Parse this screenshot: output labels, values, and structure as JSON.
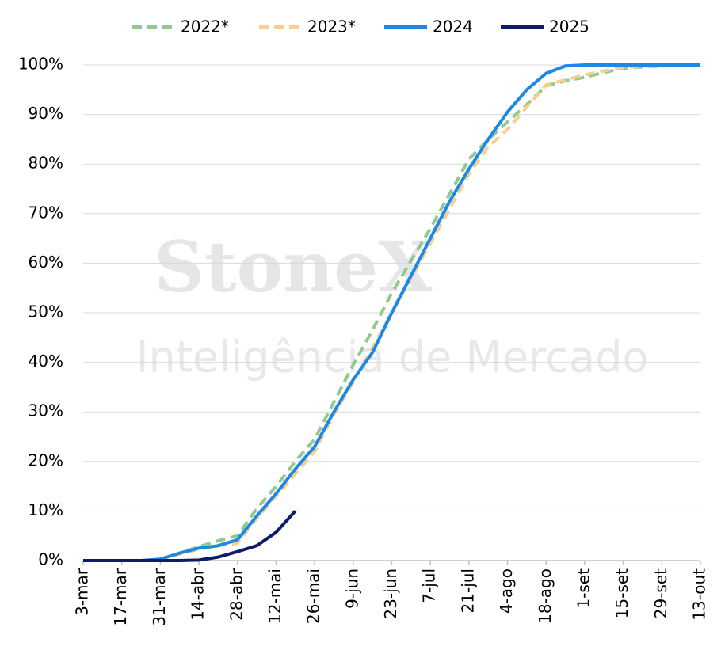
{
  "chart_data": {
    "type": "line",
    "watermark": {
      "brand": "StoneX",
      "subtitle": "Inteligência de Mercado"
    },
    "categories": [
      "3-mar",
      null,
      "17-mar",
      null,
      "31-mar",
      null,
      "14-abr",
      null,
      "28-abr",
      null,
      "12-mai",
      null,
      "26-mai",
      null,
      "9-jun",
      null,
      "23-jun",
      null,
      "7-jul",
      null,
      "21-jul",
      null,
      "4-ago",
      null,
      "18-ago",
      null,
      "1-set",
      null,
      "15-set",
      null,
      "29-set",
      null,
      "13-out"
    ],
    "series": [
      {
        "name": "2022*",
        "color": "#93c98f",
        "dash": true,
        "values": [
          0,
          0,
          0,
          0,
          0.3,
          1.5,
          2.8,
          4,
          5,
          10.5,
          15,
          20,
          24.5,
          32,
          39.5,
          46.5,
          54,
          60.5,
          67,
          74,
          81,
          85,
          88.5,
          92,
          95.8,
          96.8,
          97.5,
          98.5,
          99.3,
          99.6,
          99.8,
          100,
          100
        ]
      },
      {
        "name": "2023*",
        "color": "#f7cf91",
        "dash": true,
        "values": [
          0,
          0,
          0,
          0,
          0.2,
          1.3,
          2.3,
          3,
          3.5,
          8.5,
          13,
          17.5,
          22,
          29.5,
          36,
          43,
          50,
          57,
          64,
          71,
          78,
          83.5,
          87,
          91.5,
          96,
          97,
          98,
          98.8,
          99.5,
          99.7,
          99.8,
          100,
          100
        ]
      },
      {
        "name": "2024",
        "color": "#1e88e5",
        "dash": false,
        "values": [
          0,
          0,
          0,
          0,
          0.3,
          1.5,
          2.5,
          3,
          4.2,
          9,
          13.5,
          18.5,
          23,
          30,
          36.5,
          42,
          50,
          57.5,
          65,
          72.5,
          79,
          85,
          90.5,
          95,
          98.3,
          99.8,
          100,
          100,
          100,
          100,
          100,
          100,
          100
        ]
      },
      {
        "name": "2025",
        "color": "#101a6b",
        "dash": false,
        "values": [
          0,
          0,
          0,
          0,
          0,
          0,
          0.1,
          0.7,
          1.8,
          3,
          5.7,
          10,
          null,
          null,
          null,
          null,
          null,
          null,
          null,
          null,
          null,
          null,
          null,
          null,
          null,
          null,
          null,
          null,
          null,
          null,
          null,
          null,
          null
        ]
      }
    ],
    "ylim": [
      0,
      100
    ],
    "yticks": [
      {
        "value": 0,
        "label": "0%"
      },
      {
        "value": 10,
        "label": "10%"
      },
      {
        "value": 20,
        "label": "20%"
      },
      {
        "value": 30,
        "label": "30%"
      },
      {
        "value": 40,
        "label": "40%"
      },
      {
        "value": 50,
        "label": "50%"
      },
      {
        "value": 60,
        "label": "60%"
      },
      {
        "value": 70,
        "label": "70%"
      },
      {
        "value": 80,
        "label": "80%"
      },
      {
        "value": 90,
        "label": "90%"
      },
      {
        "value": 100,
        "label": "100%"
      }
    ],
    "grid": true,
    "legend": "top"
  }
}
